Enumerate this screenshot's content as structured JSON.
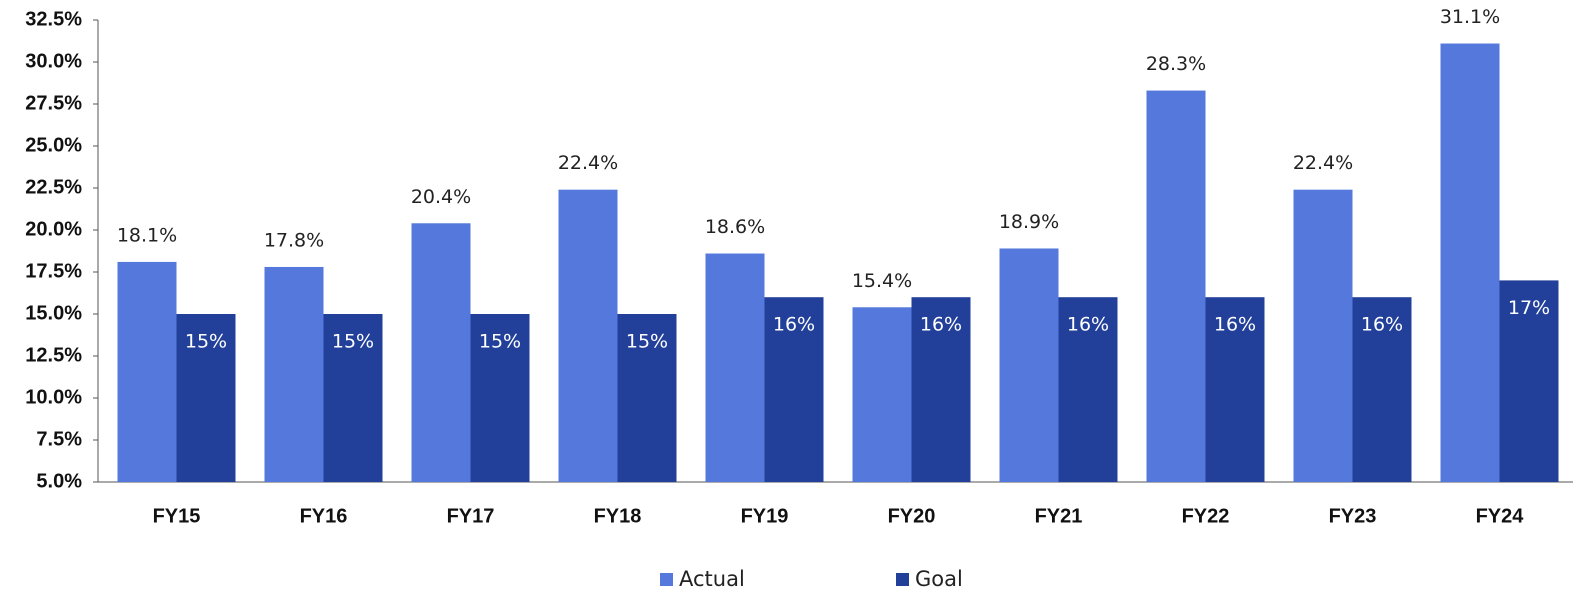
{
  "chart_data": {
    "type": "bar",
    "categories": [
      "FY15",
      "FY16",
      "FY17",
      "FY18",
      "FY19",
      "FY20",
      "FY21",
      "FY22",
      "FY23",
      "FY24"
    ],
    "series": [
      {
        "name": "Actual",
        "color": "#5578dc",
        "values": [
          18.1,
          17.8,
          20.4,
          22.4,
          18.6,
          15.4,
          18.9,
          28.3,
          22.4,
          31.1
        ],
        "value_labels": [
          "18.1%",
          "17.8%",
          "20.4%",
          "22.4%",
          "18.6%",
          "15.4%",
          "18.9%",
          "28.3%",
          "22.4%",
          "31.1%"
        ]
      },
      {
        "name": "Goal",
        "color": "#22409a",
        "values": [
          15,
          15,
          15,
          15,
          16,
          16,
          16,
          16,
          16,
          17
        ],
        "value_labels": [
          "15%",
          "15%",
          "15%",
          "15%",
          "16%",
          "16%",
          "16%",
          "16%",
          "16%",
          "17%"
        ]
      }
    ],
    "ylim": [
      5,
      32.5
    ],
    "yticks": [
      {
        "value": 5,
        "label": "5.0%"
      },
      {
        "value": 7.5,
        "label": "7.5%"
      },
      {
        "value": 10,
        "label": "10.0%"
      },
      {
        "value": 12.5,
        "label": "12.5%"
      },
      {
        "value": 15,
        "label": "15.0%"
      },
      {
        "value": 17.5,
        "label": "17.5%"
      },
      {
        "value": 20,
        "label": "20.0%"
      },
      {
        "value": 22.5,
        "label": "22.5%"
      },
      {
        "value": 25,
        "label": "25.0%"
      },
      {
        "value": 27.5,
        "label": "27.5%"
      },
      {
        "value": 30,
        "label": "30.0%"
      },
      {
        "value": 32.5,
        "label": "32.5%"
      }
    ],
    "grid": false,
    "legend": "bottom"
  }
}
